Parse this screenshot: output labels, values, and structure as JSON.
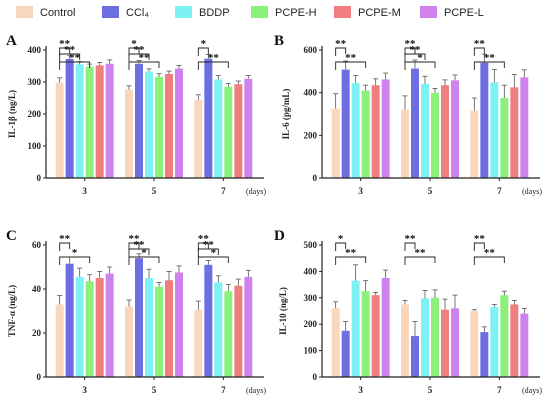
{
  "legend": {
    "items": [
      {
        "label": "Control",
        "color": "#f9d7bd"
      },
      {
        "label": "CCl₄",
        "color": "#6d6ee0"
      },
      {
        "label": "BDDP",
        "color": "#7ef1f4"
      },
      {
        "label": "PCPE-H",
        "color": "#8cf07c"
      },
      {
        "label": "PCPE-M",
        "color": "#f17e7e"
      },
      {
        "label": "PCPE-L",
        "color": "#cf82ec"
      }
    ]
  },
  "chart_data": [
    {
      "panel": "A",
      "type": "bar",
      "ylabel": "IL-1β (ng/L)",
      "xlabel": "(days)",
      "categories": [
        "3",
        "5",
        "7"
      ],
      "ylim": [
        0,
        400
      ],
      "yticks": [
        0,
        100,
        200,
        300,
        400
      ],
      "series": [
        {
          "name": "Control",
          "values": [
            298,
            276,
            245
          ],
          "errors": [
            15,
            12,
            15
          ]
        },
        {
          "name": "CCl₄",
          "values": [
            372,
            357,
            373
          ],
          "errors": [
            10,
            10,
            13
          ]
        },
        {
          "name": "BDDP",
          "values": [
            355,
            333,
            308
          ],
          "errors": [
            9,
            8,
            12
          ]
        },
        {
          "name": "PCPE-H",
          "values": [
            348,
            316,
            285
          ],
          "errors": [
            8,
            10,
            10
          ]
        },
        {
          "name": "PCPE-M",
          "values": [
            352,
            325,
            293
          ],
          "errors": [
            9,
            9,
            10
          ]
        },
        {
          "name": "PCPE-L",
          "values": [
            357,
            342,
            310
          ],
          "errors": [
            12,
            10,
            10
          ]
        }
      ],
      "annotations": [
        "**",
        "**",
        "**",
        "*",
        "**",
        "**",
        "*",
        "**",
        "**"
      ]
    },
    {
      "panel": "B",
      "type": "bar",
      "ylabel": "IL-6 (pg/mL)",
      "xlabel": "(days)",
      "categories": [
        "3",
        "5",
        "7"
      ],
      "ylim": [
        0,
        600
      ],
      "yticks": [
        0,
        200,
        400,
        600
      ],
      "series": [
        {
          "name": "Control",
          "values": [
            325,
            320,
            315
          ],
          "errors": [
            70,
            65,
            60
          ]
        },
        {
          "name": "CCl₄",
          "values": [
            508,
            513,
            540
          ],
          "errors": [
            40,
            40,
            40
          ]
        },
        {
          "name": "BDDP",
          "values": [
            445,
            442,
            448
          ],
          "errors": [
            35,
            35,
            60
          ]
        },
        {
          "name": "PCPE-H",
          "values": [
            410,
            400,
            375
          ],
          "errors": [
            25,
            20,
            60
          ]
        },
        {
          "name": "PCPE-M",
          "values": [
            435,
            435,
            425
          ],
          "errors": [
            30,
            25,
            60
          ]
        },
        {
          "name": "PCPE-L",
          "values": [
            462,
            458,
            472
          ],
          "errors": [
            30,
            25,
            35
          ]
        }
      ],
      "annotations": [
        "**",
        "**",
        "**",
        "**",
        "*",
        "**",
        "**"
      ]
    },
    {
      "panel": "C",
      "type": "bar",
      "ylabel": "TNF-α (ng/L)",
      "xlabel": "(days)",
      "categories": [
        "3",
        "5",
        "7"
      ],
      "ylim": [
        0,
        60
      ],
      "yticks": [
        0,
        20,
        40,
        60
      ],
      "series": [
        {
          "name": "Control",
          "values": [
            33,
            32,
            30.5
          ],
          "errors": [
            4,
            3,
            4
          ]
        },
        {
          "name": "CCl₄",
          "values": [
            51.5,
            54,
            51
          ],
          "errors": [
            3,
            2,
            2
          ]
        },
        {
          "name": "BDDP",
          "values": [
            45.5,
            45,
            43
          ],
          "errors": [
            4,
            4,
            3
          ]
        },
        {
          "name": "PCPE-H",
          "values": [
            43.5,
            41,
            39
          ],
          "errors": [
            3,
            2,
            3
          ]
        },
        {
          "name": "PCPE-M",
          "values": [
            45,
            44,
            41.5
          ],
          "errors": [
            3,
            4,
            3
          ]
        },
        {
          "name": "PCPE-L",
          "values": [
            47,
            47.5,
            45.5
          ],
          "errors": [
            3,
            3,
            3
          ]
        }
      ],
      "annotations": [
        "**",
        "*",
        "**",
        "**",
        "*",
        "**",
        "**",
        "*"
      ]
    },
    {
      "panel": "D",
      "type": "bar",
      "ylabel": "IL-10 (ng/L)",
      "xlabel": "(days)",
      "categories": [
        "3",
        "5",
        "7"
      ],
      "ylim": [
        0,
        500
      ],
      "yticks": [
        0,
        100,
        200,
        300,
        400,
        500
      ],
      "series": [
        {
          "name": "Control",
          "values": [
            260,
            275,
            250
          ],
          "errors": [
            25,
            15,
            5
          ]
        },
        {
          "name": "CCl₄",
          "values": [
            175,
            155,
            170
          ],
          "errors": [
            35,
            55,
            20
          ]
        },
        {
          "name": "BDDP",
          "values": [
            365,
            298,
            265
          ],
          "errors": [
            60,
            30,
            10
          ]
        },
        {
          "name": "PCPE-H",
          "values": [
            325,
            300,
            310
          ],
          "errors": [
            40,
            30,
            15
          ]
        },
        {
          "name": "PCPE-M",
          "values": [
            310,
            255,
            275
          ],
          "errors": [
            10,
            40,
            15
          ]
        },
        {
          "name": "PCPE-L",
          "values": [
            375,
            260,
            240
          ],
          "errors": [
            30,
            50,
            20
          ]
        }
      ],
      "annotations": [
        "*",
        "**",
        "**",
        "**",
        "**",
        "**"
      ]
    }
  ]
}
